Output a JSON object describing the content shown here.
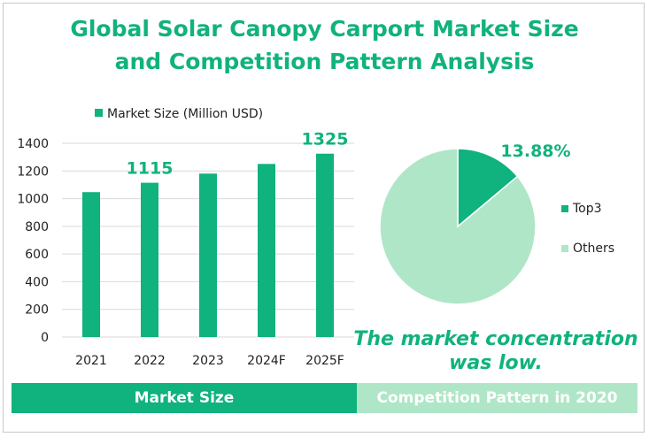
{
  "title_line1": "Global Solar Canopy Carport Market Size",
  "title_line2": "and Competition Pattern Analysis",
  "conclusion_line1": "The market concentration",
  "conclusion_line2": "was low.",
  "bands": {
    "left": "Market Size",
    "right": "Competition Pattern in 2020"
  },
  "colors": {
    "primary": "#10b27d",
    "light": "#b0e6c8"
  },
  "chart_data": [
    {
      "type": "bar",
      "legend": "Market Size (Million USD)",
      "categories": [
        "2021",
        "2022",
        "2023",
        "2024F",
        "2025F"
      ],
      "values": [
        1047,
        1115,
        1181,
        1251,
        1325
      ],
      "data_labels": {
        "1": "1115",
        "4": "1325"
      },
      "yticks": [
        "0",
        "200",
        "400",
        "600",
        "800",
        "1000",
        "1200",
        "1400"
      ],
      "ylim": [
        0,
        1400
      ],
      "grid": true,
      "legend_position": "top"
    },
    {
      "type": "pie",
      "labels": [
        "Top3",
        "Others"
      ],
      "values": [
        13.88,
        86.12
      ],
      "data_label": "13.88%",
      "legend_position": "right"
    }
  ]
}
